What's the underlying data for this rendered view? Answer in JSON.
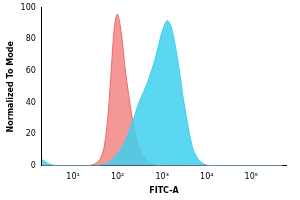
{
  "chart_data": {
    "type": "area",
    "x_label": "FITC-A",
    "y_label": "Normalized To Mode",
    "log": "x",
    "grid": false,
    "x": [
      2,
      3,
      5,
      10,
      20,
      30,
      40,
      50,
      60,
      70,
      80,
      90,
      100,
      120,
      150,
      200,
      250,
      300,
      400,
      500,
      700,
      1000,
      1300,
      1600,
      2000,
      2500,
      3000,
      4000,
      5000,
      7000,
      10000,
      20000,
      100000,
      500000
    ],
    "series": [
      {
        "color": "#3fd0ee",
        "values": [
          4,
          1,
          0,
          0,
          0,
          0,
          0.5,
          1,
          2,
          3,
          5,
          6,
          8,
          11,
          16,
          25,
          33,
          40,
          48,
          55,
          68,
          85,
          92,
          88,
          75,
          58,
          42,
          22,
          10,
          3,
          0.5,
          0,
          0,
          0
        ]
      },
      {
        "color": "#ee6b6b",
        "values": [
          0,
          0,
          0,
          0,
          0,
          1,
          4,
          12,
          30,
          55,
          80,
          93,
          96,
          85,
          60,
          35,
          20,
          12,
          5,
          2,
          0.5,
          0,
          0,
          0,
          0,
          0,
          0,
          0,
          0,
          0,
          0,
          0,
          0,
          0
        ]
      }
    ],
    "xlim": [
      2,
      600000
    ],
    "xticks": [
      {
        "value": 10,
        "label": "10¹"
      },
      {
        "value": 100,
        "label": "10²"
      },
      {
        "value": 1000,
        "label": "10³"
      },
      {
        "value": 10000,
        "label": "10⁴"
      },
      {
        "value": 100000,
        "label": "10⁵"
      }
    ],
    "ylim": [
      0,
      100
    ],
    "yticks": [
      0,
      20,
      40,
      60,
      80,
      100
    ]
  }
}
